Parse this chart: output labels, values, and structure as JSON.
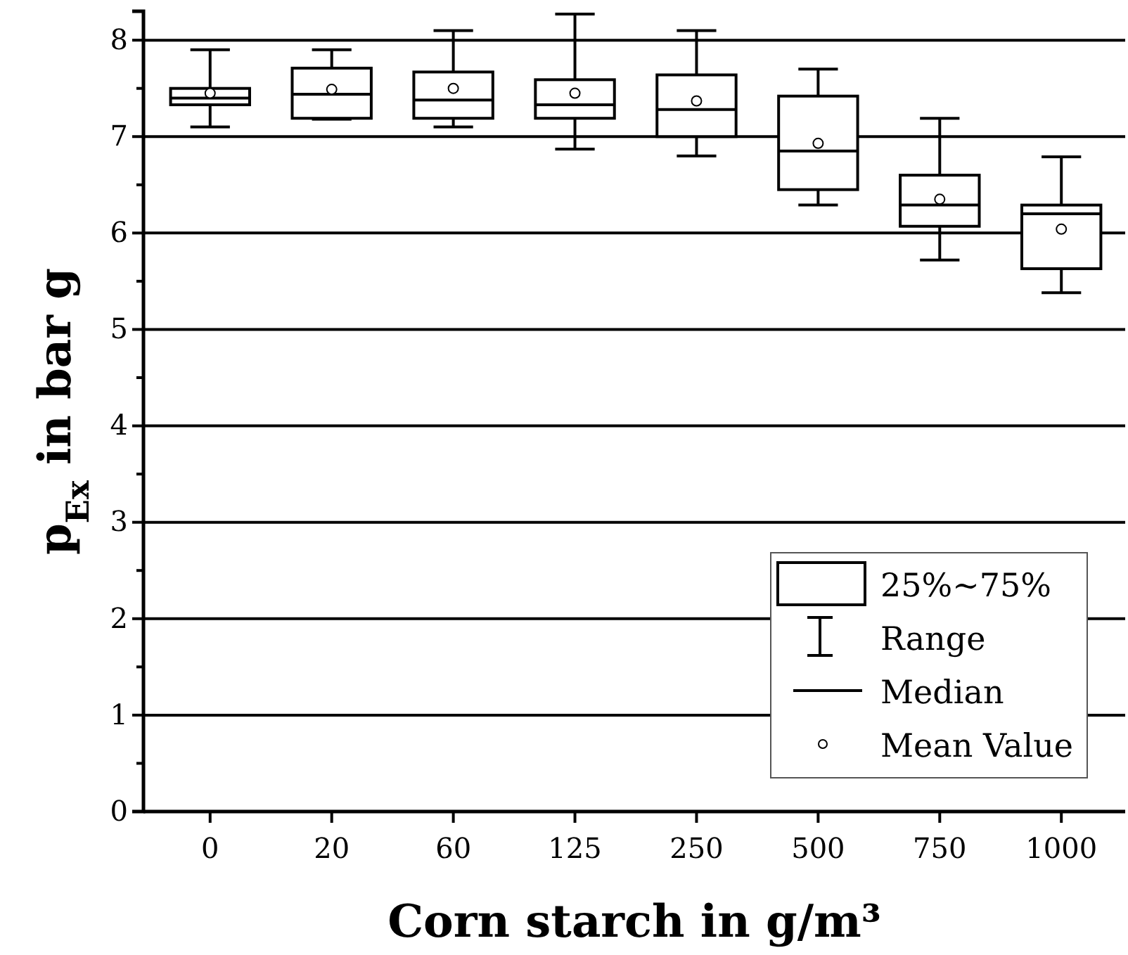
{
  "chart_data": {
    "type": "box",
    "xlabel": "Corn starch in g/m³",
    "ylabel": "p$_{Ex}$ in bar g",
    "categories": [
      "0",
      "20",
      "60",
      "125",
      "250",
      "500",
      "750",
      "1000"
    ],
    "boxes": [
      {
        "low": 7.1,
        "q1": 7.33,
        "median": 7.4,
        "q3": 7.5,
        "high": 7.9,
        "mean": 7.45
      },
      {
        "low": 7.18,
        "q1": 7.19,
        "median": 7.44,
        "q3": 7.71,
        "high": 7.9,
        "mean": 7.49
      },
      {
        "low": 7.1,
        "q1": 7.19,
        "median": 7.38,
        "q3": 7.67,
        "high": 8.1,
        "mean": 7.5
      },
      {
        "low": 6.87,
        "q1": 7.19,
        "median": 7.33,
        "q3": 7.59,
        "high": 8.27,
        "mean": 7.45
      },
      {
        "low": 6.8,
        "q1": 7.0,
        "median": 7.28,
        "q3": 7.64,
        "high": 8.1,
        "mean": 7.37
      },
      {
        "low": 6.29,
        "q1": 6.45,
        "median": 6.85,
        "q3": 7.42,
        "high": 7.7,
        "mean": 6.93
      },
      {
        "low": 5.72,
        "q1": 6.07,
        "median": 6.29,
        "q3": 6.6,
        "high": 7.19,
        "mean": 6.35
      },
      {
        "low": 5.38,
        "q1": 5.63,
        "median": 6.2,
        "q3": 6.29,
        "high": 6.79,
        "mean": 6.04
      }
    ],
    "ylim": [
      0,
      8.3
    ],
    "yticks": [
      0,
      {
        "value": 0.5,
        "label": null
      },
      1,
      {
        "value": 1.5,
        "label": null
      },
      2,
      {
        "value": 2.5,
        "label": null
      },
      3,
      {
        "value": 3.5,
        "label": null
      },
      4,
      {
        "value": 4.5,
        "label": null
      },
      5,
      {
        "value": 5.5,
        "label": null
      },
      6,
      {
        "value": 6.5,
        "label": null
      },
      7,
      {
        "value": 7.5,
        "label": null
      },
      8
    ],
    "grid": "y",
    "annotations": [
      "25%~75%",
      "Range",
      "Median",
      "Mean Value"
    ]
  }
}
